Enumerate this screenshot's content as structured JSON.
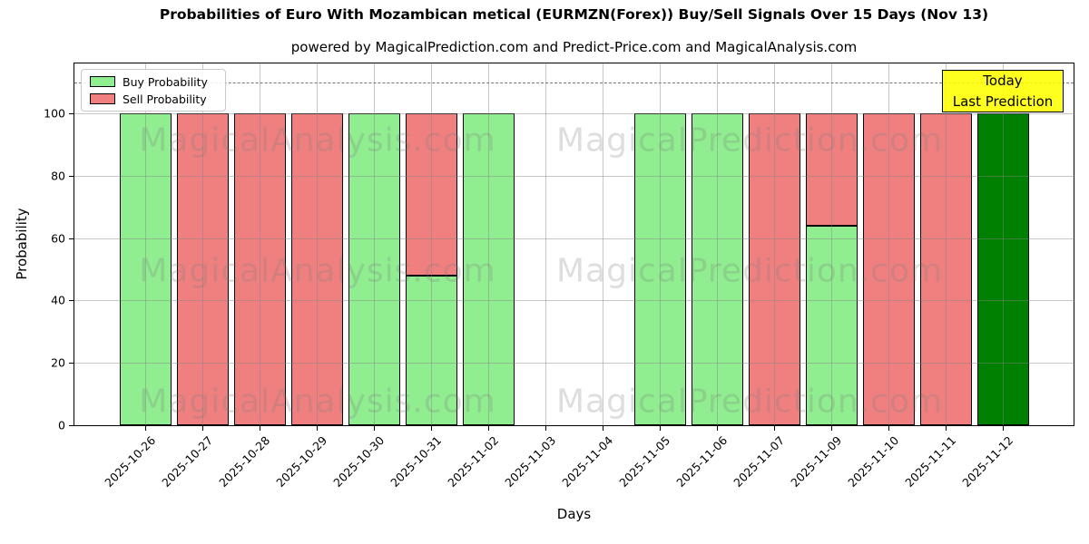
{
  "chart_data": {
    "type": "bar",
    "stacked": true,
    "title": "Probabilities of Euro With Mozambican metical (EURMZN(Forex)) Buy/Sell Signals Over 15 Days (Nov 13)",
    "subtitle": "powered by MagicalPrediction.com and Predict-Price.com and MagicalAnalysis.com",
    "xlabel": "Days",
    "ylabel": "Probability",
    "categories": [
      "2025-10-26",
      "2025-10-27",
      "2025-10-28",
      "2025-10-29",
      "2025-10-30",
      "2025-10-31",
      "2025-11-02",
      "2025-11-03",
      "2025-11-04",
      "2025-11-05",
      "2025-11-06",
      "2025-11-07",
      "2025-11-09",
      "2025-11-10",
      "2025-11-11",
      "2025-11-12"
    ],
    "series": [
      {
        "name": "Buy Probability",
        "color": "#90EE90",
        "values": [
          100,
          0,
          0,
          0,
          100,
          48,
          100,
          null,
          null,
          100,
          100,
          0,
          64,
          0,
          0,
          100
        ]
      },
      {
        "name": "Sell Probability",
        "color": "#F08080",
        "values": [
          0,
          100,
          100,
          100,
          0,
          52,
          0,
          null,
          null,
          0,
          0,
          100,
          36,
          100,
          100,
          0
        ]
      }
    ],
    "today_index": 15,
    "today_bar_color": "#008000",
    "bar_edge_color": "#000000",
    "yticks": [
      0,
      20,
      40,
      60,
      80,
      100
    ],
    "ylim": [
      0,
      116
    ],
    "threshold_value": 110,
    "threshold_style": "gray dashed",
    "grid": true,
    "legend_position": "upper left",
    "annotation": {
      "line1": "Today",
      "line2": "Last Prediction",
      "bg_color": "#FFFF00"
    },
    "watermarks": {
      "left_text": "MagicalAnalysis.com",
      "right_text": "MagicalPrediction.com"
    }
  }
}
